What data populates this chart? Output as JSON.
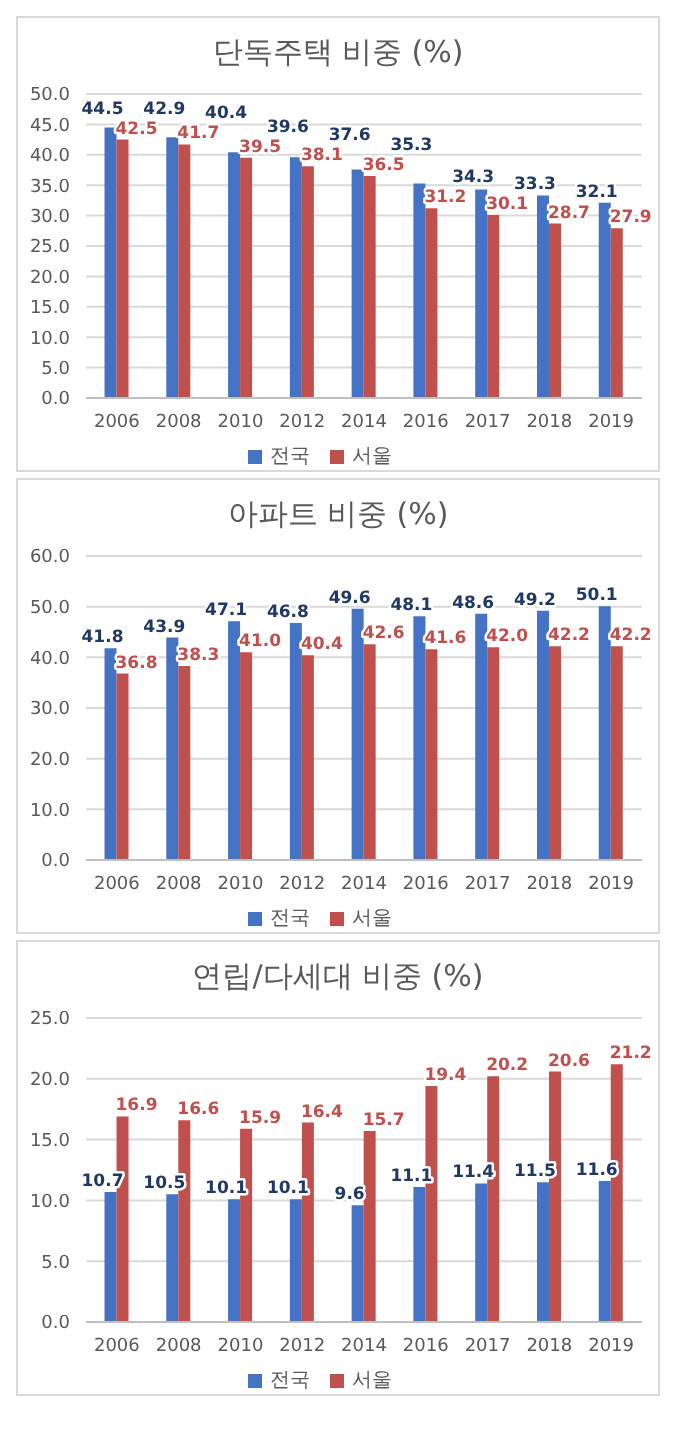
{
  "chart_data": [
    {
      "type": "bar",
      "title": "단독주택 비중 (%)",
      "categories": [
        "2006",
        "2008",
        "2010",
        "2012",
        "2014",
        "2016",
        "2017",
        "2018",
        "2019"
      ],
      "series": [
        {
          "name": "전국",
          "color": "#4472c4",
          "values": [
            44.5,
            42.9,
            40.4,
            39.6,
            37.6,
            35.3,
            34.3,
            33.3,
            32.1
          ],
          "value_labels": [
            "44.5",
            "42.9",
            "40.4",
            "39.6",
            "37.6",
            "35.3",
            "34.3",
            "33.3",
            "32.1"
          ]
        },
        {
          "name": "서울",
          "color": "#c0504d",
          "values": [
            42.5,
            41.7,
            39.5,
            38.1,
            36.5,
            31.2,
            30.1,
            28.7,
            27.9
          ],
          "value_labels": [
            "42.5",
            "41.7",
            "39.5",
            "38.1",
            "36.5",
            "31.2",
            "30.1",
            "28.7",
            "27.9"
          ]
        }
      ],
      "ylim": [
        0,
        50
      ],
      "yticks": [
        {
          "value": 0,
          "label": "0.0"
        },
        {
          "value": 5,
          "label": "5.0"
        },
        {
          "value": 10,
          "label": "10.0"
        },
        {
          "value": 15,
          "label": "15.0"
        },
        {
          "value": 20,
          "label": "20.0"
        },
        {
          "value": 25,
          "label": "25.0"
        },
        {
          "value": 30,
          "label": "30.0"
        },
        {
          "value": 35,
          "label": "35.0"
        },
        {
          "value": 40,
          "label": "40.0"
        },
        {
          "value": 45,
          "label": "45.0"
        },
        {
          "value": 50,
          "label": "50.0"
        }
      ],
      "grid": "y",
      "legend": "bottom"
    },
    {
      "type": "bar",
      "title": "아파트 비중 (%)",
      "categories": [
        "2006",
        "2008",
        "2010",
        "2012",
        "2014",
        "2016",
        "2017",
        "2018",
        "2019"
      ],
      "series": [
        {
          "name": "전국",
          "color": "#4472c4",
          "values": [
            41.8,
            43.9,
            47.1,
            46.8,
            49.6,
            48.1,
            48.6,
            49.2,
            50.1
          ],
          "value_labels": [
            "41.8",
            "43.9",
            "47.1",
            "46.8",
            "49.6",
            "48.1",
            "48.6",
            "49.2",
            "50.1"
          ]
        },
        {
          "name": "서울",
          "color": "#c0504d",
          "values": [
            36.8,
            38.3,
            41.0,
            40.4,
            42.6,
            41.6,
            42.0,
            42.2,
            42.2
          ],
          "value_labels": [
            "36.8",
            "38.3",
            "41.0",
            "40.4",
            "42.6",
            "41.6",
            "42.0",
            "42.2",
            "42.2"
          ]
        }
      ],
      "ylim": [
        0,
        60
      ],
      "yticks": [
        {
          "value": 0,
          "label": "0.0"
        },
        {
          "value": 10,
          "label": "10.0"
        },
        {
          "value": 20,
          "label": "20.0"
        },
        {
          "value": 30,
          "label": "30.0"
        },
        {
          "value": 40,
          "label": "40.0"
        },
        {
          "value": 50,
          "label": "50.0"
        },
        {
          "value": 60,
          "label": "60.0"
        }
      ],
      "grid": "y",
      "legend": "bottom"
    },
    {
      "type": "bar",
      "title": "연립/다세대 비중 (%)",
      "categories": [
        "2006",
        "2008",
        "2010",
        "2012",
        "2014",
        "2016",
        "2017",
        "2018",
        "2019"
      ],
      "series": [
        {
          "name": "전국",
          "color": "#4472c4",
          "values": [
            10.7,
            10.5,
            10.1,
            10.1,
            9.6,
            11.1,
            11.4,
            11.5,
            11.6
          ],
          "value_labels": [
            "10.7",
            "10.5",
            "10.1",
            "10.1",
            "9.6",
            "11.1",
            "11.4",
            "11.5",
            "11.6"
          ]
        },
        {
          "name": "서울",
          "color": "#c0504d",
          "values": [
            16.9,
            16.6,
            15.9,
            16.4,
            15.7,
            19.4,
            20.2,
            20.6,
            21.2
          ],
          "value_labels": [
            "16.9",
            "16.6",
            "15.9",
            "16.4",
            "15.7",
            "19.4",
            "20.2",
            "20.6",
            "21.2"
          ]
        }
      ],
      "ylim": [
        0,
        25
      ],
      "yticks": [
        {
          "value": 0,
          "label": "0.0"
        },
        {
          "value": 5,
          "label": "5.0"
        },
        {
          "value": 10,
          "label": "10.0"
        },
        {
          "value": 15,
          "label": "15.0"
        },
        {
          "value": 20,
          "label": "20.0"
        },
        {
          "value": 25,
          "label": "25.0"
        }
      ],
      "grid": "y",
      "legend": "bottom"
    }
  ]
}
